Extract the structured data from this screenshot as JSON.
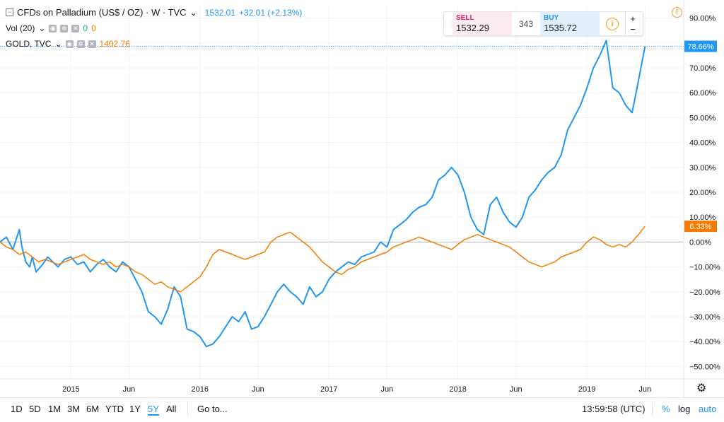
{
  "header": {
    "symbol_title": "CFDs on Palladium (US$ / OZ) · W · TVC",
    "last_price": "1532.01",
    "change": "+32.01 (+2.13%)",
    "volume_label": "Vol (20)",
    "volume_value_1": "0",
    "volume_value_2": "0",
    "compare_label": "GOLD, TVC",
    "compare_value": "1402.76"
  },
  "trade_panel": {
    "sell_label": "SELL",
    "sell_price": "1532.29",
    "spread": "343",
    "buy_label": "BUY",
    "buy_price": "1535.72",
    "plus": "+",
    "minus": "−",
    "info": "i"
  },
  "alert_icon": "!",
  "price_badges": {
    "palladium": "78.66%",
    "gold": "6.33%"
  },
  "toolbar": {
    "ranges": [
      "1D",
      "5D",
      "1M",
      "3M",
      "6M",
      "YTD",
      "1Y",
      "5Y",
      "All"
    ],
    "active_range": "5Y",
    "goto": "Go to...",
    "time": "13:59:58 (UTC)",
    "percent": "%",
    "log": "log",
    "auto": "auto"
  },
  "colors": {
    "palladium": "#2196f3",
    "gold": "#f57c00",
    "grid": "#f0f3fa",
    "axis_text": "#131722"
  },
  "chart_data": {
    "type": "line",
    "y_unit": "%",
    "ylim": [
      -55,
      95
    ],
    "y_ticks": [
      90,
      80,
      70,
      60,
      50,
      40,
      30,
      20,
      10,
      0,
      -10,
      -20,
      -30,
      -40,
      -50
    ],
    "y_tick_labels": [
      "90.00%",
      "80.00%",
      "70.00%",
      "60.00%",
      "50.00%",
      "40.00%",
      "30.00%",
      "20.00%",
      "10.00%",
      "0.00%",
      "−10.00%",
      "−20.00%",
      "−30.00%",
      "−40.00%",
      "−50.00%"
    ],
    "xlim": [
      2014.45,
      2019.75
    ],
    "x_ticks": [
      2015.0,
      2015.45,
      2016.0,
      2016.45,
      2017.0,
      2017.45,
      2018.0,
      2018.45,
      2019.0,
      2019.45
    ],
    "x_tick_labels": [
      "2015",
      "Jun",
      "2016",
      "Jun",
      "2017",
      "Jun",
      "2018",
      "Jun",
      "2019",
      "Jun"
    ],
    "grid": true,
    "series": [
      {
        "name": "CFDs on Palladium (US$ / OZ)",
        "x": [
          2014.45,
          2014.5,
          2014.55,
          2014.6,
          2014.62,
          2014.65,
          2014.68,
          2014.7,
          2014.73,
          2014.78,
          2014.82,
          2014.86,
          2014.9,
          2014.95,
          2015.0,
          2015.05,
          2015.1,
          2015.15,
          2015.2,
          2015.25,
          2015.3,
          2015.35,
          2015.4,
          2015.45,
          2015.5,
          2015.55,
          2015.6,
          2015.65,
          2015.7,
          2015.75,
          2015.8,
          2015.85,
          2015.9,
          2015.95,
          2016.0,
          2016.05,
          2016.1,
          2016.15,
          2016.2,
          2016.25,
          2016.3,
          2016.35,
          2016.4,
          2016.45,
          2016.5,
          2016.55,
          2016.6,
          2016.65,
          2016.7,
          2016.75,
          2016.8,
          2016.85,
          2016.9,
          2016.95,
          2017.0,
          2017.05,
          2017.1,
          2017.15,
          2017.2,
          2017.25,
          2017.3,
          2017.35,
          2017.4,
          2017.45,
          2017.5,
          2017.55,
          2017.6,
          2017.65,
          2017.7,
          2017.75,
          2017.8,
          2017.85,
          2017.9,
          2017.95,
          2018.0,
          2018.05,
          2018.1,
          2018.15,
          2018.2,
          2018.25,
          2018.3,
          2018.35,
          2018.4,
          2018.45,
          2018.5,
          2018.55,
          2018.6,
          2018.65,
          2018.7,
          2018.75,
          2018.8,
          2018.85,
          2018.9,
          2018.95,
          2019.0,
          2019.05,
          2019.1,
          2019.15,
          2019.2,
          2019.25,
          2019.3,
          2019.35,
          2019.4,
          2019.45
        ],
        "values": [
          0,
          2,
          -3,
          5,
          -2,
          -8,
          -10,
          -6,
          -12,
          -9,
          -6,
          -8,
          -10,
          -7,
          -6,
          -9,
          -8,
          -12,
          -9,
          -7,
          -10,
          -12,
          -8,
          -10,
          -15,
          -20,
          -28,
          -30,
          -33,
          -27,
          -18,
          -22,
          -35,
          -36,
          -38,
          -42,
          -41,
          -38,
          -34,
          -30,
          -32,
          -28,
          -35,
          -34,
          -30,
          -25,
          -20,
          -17,
          -20,
          -22,
          -25,
          -18,
          -22,
          -20,
          -15,
          -12,
          -10,
          -8,
          -9,
          -6,
          -5,
          -4,
          0,
          -2,
          5,
          7,
          9,
          12,
          14,
          15,
          18,
          25,
          27,
          30,
          27,
          20,
          10,
          5,
          3,
          15,
          18,
          12,
          8,
          6,
          10,
          18,
          21,
          25,
          28,
          30,
          35,
          45,
          50,
          55,
          62,
          70,
          75,
          81,
          62,
          60,
          55,
          52,
          65,
          78.66
        ],
        "last": 78.66
      },
      {
        "name": "GOLD, TVC",
        "x": [
          2014.45,
          2014.5,
          2014.55,
          2014.6,
          2014.65,
          2014.7,
          2014.75,
          2014.8,
          2014.85,
          2014.9,
          2014.95,
          2015.0,
          2015.05,
          2015.1,
          2015.15,
          2015.2,
          2015.25,
          2015.3,
          2015.35,
          2015.4,
          2015.45,
          2015.5,
          2015.55,
          2015.6,
          2015.65,
          2015.7,
          2015.75,
          2015.8,
          2015.85,
          2015.9,
          2015.95,
          2016.0,
          2016.05,
          2016.1,
          2016.15,
          2016.2,
          2016.25,
          2016.3,
          2016.35,
          2016.4,
          2016.45,
          2016.5,
          2016.55,
          2016.6,
          2016.65,
          2016.7,
          2016.75,
          2016.8,
          2016.85,
          2016.9,
          2016.95,
          2017.0,
          2017.05,
          2017.1,
          2017.15,
          2017.2,
          2017.25,
          2017.3,
          2017.35,
          2017.4,
          2017.45,
          2017.5,
          2017.55,
          2017.6,
          2017.65,
          2017.7,
          2017.75,
          2017.8,
          2017.85,
          2017.9,
          2017.95,
          2018.0,
          2018.05,
          2018.1,
          2018.15,
          2018.2,
          2018.25,
          2018.3,
          2018.35,
          2018.4,
          2018.45,
          2018.5,
          2018.55,
          2018.6,
          2018.65,
          2018.7,
          2018.75,
          2018.8,
          2018.85,
          2018.9,
          2018.95,
          2019.0,
          2019.05,
          2019.1,
          2019.15,
          2019.2,
          2019.25,
          2019.3,
          2019.35,
          2019.4,
          2019.45
        ],
        "values": [
          0,
          -2,
          -3,
          -5,
          -4,
          -6,
          -8,
          -7,
          -8,
          -9,
          -8,
          -7,
          -6,
          -5,
          -7,
          -8,
          -9,
          -8,
          -10,
          -9,
          -10,
          -12,
          -13,
          -15,
          -17,
          -16,
          -18,
          -19,
          -20,
          -18,
          -16,
          -14,
          -10,
          -5,
          -3,
          -4,
          -5,
          -6,
          -7,
          -6,
          -5,
          -4,
          0,
          2,
          3,
          4,
          2,
          0,
          -2,
          -5,
          -8,
          -10,
          -12,
          -13,
          -11,
          -10,
          -8,
          -7,
          -6,
          -5,
          -4,
          -2,
          -1,
          0,
          1,
          2,
          1,
          0,
          -1,
          -2,
          -3,
          -1,
          1,
          2,
          3,
          2,
          1,
          0,
          -1,
          -2,
          -4,
          -6,
          -8,
          -9,
          -10,
          -9,
          -8,
          -6,
          -5,
          -4,
          -3,
          0,
          2,
          1,
          -1,
          -2,
          -1,
          -2,
          0,
          3,
          6.33
        ],
        "last": 6.33
      }
    ]
  }
}
